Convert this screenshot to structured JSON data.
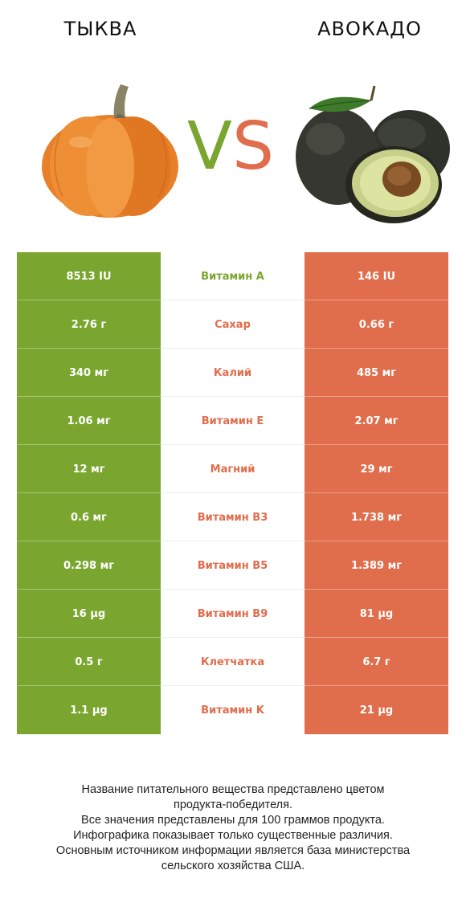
{
  "header": {
    "left_title": "ТЫКВА",
    "right_title": "АВОКАДО",
    "vs_v": "V",
    "vs_s": "S"
  },
  "colors": {
    "left_product": "#7aa62f",
    "right_product": "#e06d4c"
  },
  "rows": [
    {
      "left": "8513 IU",
      "nutrient": "Витамин A",
      "right": "146 IU",
      "winner": "left"
    },
    {
      "left": "2.76 г",
      "nutrient": "Сахар",
      "right": "0.66 г",
      "winner": "right"
    },
    {
      "left": "340 мг",
      "nutrient": "Калий",
      "right": "485 мг",
      "winner": "right"
    },
    {
      "left": "1.06 мг",
      "nutrient": "Витамин E",
      "right": "2.07 мг",
      "winner": "right"
    },
    {
      "left": "12 мг",
      "nutrient": "Магний",
      "right": "29 мг",
      "winner": "right"
    },
    {
      "left": "0.6 мг",
      "nutrient": "Витамин B3",
      "right": "1.738 мг",
      "winner": "right"
    },
    {
      "left": "0.298 мг",
      "nutrient": "Витамин B5",
      "right": "1.389 мг",
      "winner": "right"
    },
    {
      "left": "16 µg",
      "nutrient": "Витамин B9",
      "right": "81 µg",
      "winner": "right"
    },
    {
      "left": "0.5 г",
      "nutrient": "Клетчатка",
      "right": "6.7 г",
      "winner": "right"
    },
    {
      "left": "1.1 µg",
      "nutrient": "Витамин K",
      "right": "21 µg",
      "winner": "right"
    }
  ],
  "footer": {
    "line1": "Название питательного вещества представлено цветом",
    "line2": "продукта-победителя.",
    "line3": "Все значения представлены для 100 граммов продукта.",
    "line4": "Инфографика показывает только существенные различия.",
    "line5": "Основным источником информации является база министерства",
    "line6": "сельского хозяйства США."
  }
}
